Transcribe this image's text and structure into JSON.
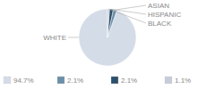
{
  "chart_data": {
    "type": "pie",
    "categories": [
      "WHITE",
      "ASIAN",
      "HISPANIC",
      "BLACK"
    ],
    "values": [
      94.7,
      2.1,
      2.1,
      1.1
    ],
    "value_labels": [
      "94.7%",
      "2.1%",
      "2.1%",
      "1.1%"
    ],
    "colors": [
      "#d4dce8",
      "#6b8fa8",
      "#2d4f6b",
      "#c5cdd8"
    ],
    "legend": "bottom"
  }
}
